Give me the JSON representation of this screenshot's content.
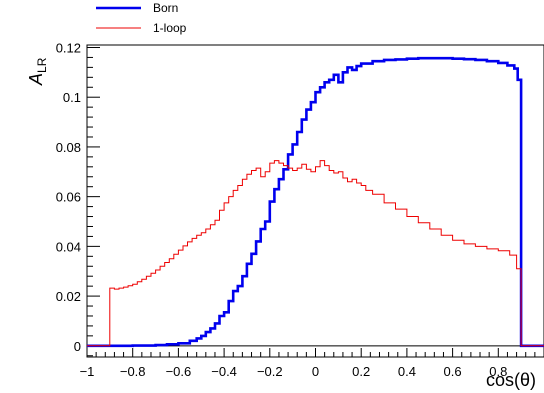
{
  "chart_data": {
    "type": "line",
    "step": true,
    "xlabel": "cos(θ)",
    "ylabel_main": "A",
    "ylabel_sub": "LR",
    "xlim": [
      -1,
      1
    ],
    "ylim": [
      -0.0045,
      0.121
    ],
    "xticks": [
      -1,
      -0.8,
      -0.6,
      -0.4,
      -0.2,
      0,
      0.2,
      0.4,
      0.6,
      0.8
    ],
    "xtick_labels": [
      "−1",
      "−0.8",
      "−0.6",
      "−0.4",
      "−0.2",
      "0",
      "0.2",
      "0.4",
      "0.6",
      "0.8"
    ],
    "yticks": [
      0,
      0.02,
      0.04,
      0.06,
      0.08,
      0.1,
      0.12
    ],
    "ytick_labels": [
      "0",
      "0.02",
      "0.04",
      "0.06",
      "0.08",
      "0.1",
      "0.12"
    ],
    "legend": {
      "placement": "top-left, above the plot"
    },
    "grid": false,
    "series": [
      {
        "name": "Born",
        "color": "#0000ee",
        "points": [
          [
            -1.0,
            0.0
          ],
          [
            -0.9,
            0.0
          ],
          [
            -0.8,
            0.0001
          ],
          [
            -0.7,
            0.0003
          ],
          [
            -0.65,
            0.0006
          ],
          [
            -0.6,
            0.001
          ],
          [
            -0.55,
            0.002
          ],
          [
            -0.52,
            0.003
          ],
          [
            -0.5,
            0.004
          ],
          [
            -0.48,
            0.0055
          ],
          [
            -0.46,
            0.007
          ],
          [
            -0.44,
            0.009
          ],
          [
            -0.42,
            0.012
          ],
          [
            -0.4,
            0.0135
          ],
          [
            -0.38,
            0.018
          ],
          [
            -0.36,
            0.022
          ],
          [
            -0.34,
            0.024
          ],
          [
            -0.32,
            0.028
          ],
          [
            -0.3,
            0.033
          ],
          [
            -0.28,
            0.037
          ],
          [
            -0.26,
            0.042
          ],
          [
            -0.24,
            0.047
          ],
          [
            -0.22,
            0.05
          ],
          [
            -0.2,
            0.058
          ],
          [
            -0.18,
            0.063
          ],
          [
            -0.16,
            0.067
          ],
          [
            -0.14,
            0.071
          ],
          [
            -0.12,
            0.077
          ],
          [
            -0.1,
            0.081
          ],
          [
            -0.08,
            0.086
          ],
          [
            -0.06,
            0.091
          ],
          [
            -0.04,
            0.095
          ],
          [
            -0.02,
            0.098
          ],
          [
            0.0,
            0.102
          ],
          [
            0.02,
            0.104
          ],
          [
            0.04,
            0.106
          ],
          [
            0.06,
            0.107
          ],
          [
            0.08,
            0.109
          ],
          [
            0.1,
            0.106
          ],
          [
            0.12,
            0.11
          ],
          [
            0.14,
            0.112
          ],
          [
            0.16,
            0.111
          ],
          [
            0.18,
            0.1125
          ],
          [
            0.2,
            0.1135
          ],
          [
            0.25,
            0.1145
          ],
          [
            0.3,
            0.115
          ],
          [
            0.35,
            0.1152
          ],
          [
            0.4,
            0.1155
          ],
          [
            0.45,
            0.1157
          ],
          [
            0.5,
            0.1157
          ],
          [
            0.55,
            0.1157
          ],
          [
            0.6,
            0.1155
          ],
          [
            0.65,
            0.1153
          ],
          [
            0.7,
            0.115
          ],
          [
            0.75,
            0.1145
          ],
          [
            0.8,
            0.1138
          ],
          [
            0.84,
            0.1128
          ],
          [
            0.87,
            0.1115
          ],
          [
            0.885,
            0.107
          ],
          [
            0.9,
            0.0
          ],
          [
            1.0,
            0.0
          ]
        ]
      },
      {
        "name": "1-loop",
        "color": "#ee0000",
        "points": [
          [
            -1.0,
            0.0
          ],
          [
            -0.91,
            0.0
          ],
          [
            -0.9,
            0.0232
          ],
          [
            -0.88,
            0.0228
          ],
          [
            -0.86,
            0.0232
          ],
          [
            -0.84,
            0.0236
          ],
          [
            -0.82,
            0.0242
          ],
          [
            -0.8,
            0.0248
          ],
          [
            -0.78,
            0.0258
          ],
          [
            -0.76,
            0.0268
          ],
          [
            -0.74,
            0.028
          ],
          [
            -0.72,
            0.0292
          ],
          [
            -0.7,
            0.0305
          ],
          [
            -0.68,
            0.032
          ],
          [
            -0.66,
            0.0335
          ],
          [
            -0.64,
            0.035
          ],
          [
            -0.62,
            0.0368
          ],
          [
            -0.6,
            0.0385
          ],
          [
            -0.58,
            0.0402
          ],
          [
            -0.56,
            0.0418
          ],
          [
            -0.54,
            0.0432
          ],
          [
            -0.52,
            0.0445
          ],
          [
            -0.5,
            0.0455
          ],
          [
            -0.48,
            0.047
          ],
          [
            -0.46,
            0.0487
          ],
          [
            -0.44,
            0.0505
          ],
          [
            -0.42,
            0.0545
          ],
          [
            -0.4,
            0.0575
          ],
          [
            -0.38,
            0.06
          ],
          [
            -0.36,
            0.0625
          ],
          [
            -0.34,
            0.0645
          ],
          [
            -0.32,
            0.067
          ],
          [
            -0.3,
            0.069
          ],
          [
            -0.28,
            0.0705
          ],
          [
            -0.26,
            0.0715
          ],
          [
            -0.24,
            0.068
          ],
          [
            -0.22,
            0.07
          ],
          [
            -0.2,
            0.0735
          ],
          [
            -0.18,
            0.0745
          ],
          [
            -0.16,
            0.0735
          ],
          [
            -0.14,
            0.0725
          ],
          [
            -0.12,
            0.0715
          ],
          [
            -0.1,
            0.0705
          ],
          [
            -0.08,
            0.0715
          ],
          [
            -0.06,
            0.073
          ],
          [
            -0.04,
            0.071
          ],
          [
            -0.02,
            0.07
          ],
          [
            0.0,
            0.072
          ],
          [
            0.02,
            0.0745
          ],
          [
            0.04,
            0.0725
          ],
          [
            0.06,
            0.0705
          ],
          [
            0.08,
            0.0695
          ],
          [
            0.1,
            0.07
          ],
          [
            0.12,
            0.0675
          ],
          [
            0.14,
            0.066
          ],
          [
            0.16,
            0.067
          ],
          [
            0.18,
            0.0655
          ],
          [
            0.2,
            0.0645
          ],
          [
            0.22,
            0.0625
          ],
          [
            0.25,
            0.061
          ],
          [
            0.3,
            0.0575
          ],
          [
            0.35,
            0.055
          ],
          [
            0.4,
            0.052
          ],
          [
            0.45,
            0.0495
          ],
          [
            0.5,
            0.047
          ],
          [
            0.55,
            0.0445
          ],
          [
            0.6,
            0.0425
          ],
          [
            0.65,
            0.041
          ],
          [
            0.7,
            0.04
          ],
          [
            0.75,
            0.039
          ],
          [
            0.8,
            0.0382
          ],
          [
            0.85,
            0.0365
          ],
          [
            0.88,
            0.031
          ],
          [
            0.9,
            0.0
          ],
          [
            1.0,
            0.0
          ]
        ]
      }
    ]
  }
}
